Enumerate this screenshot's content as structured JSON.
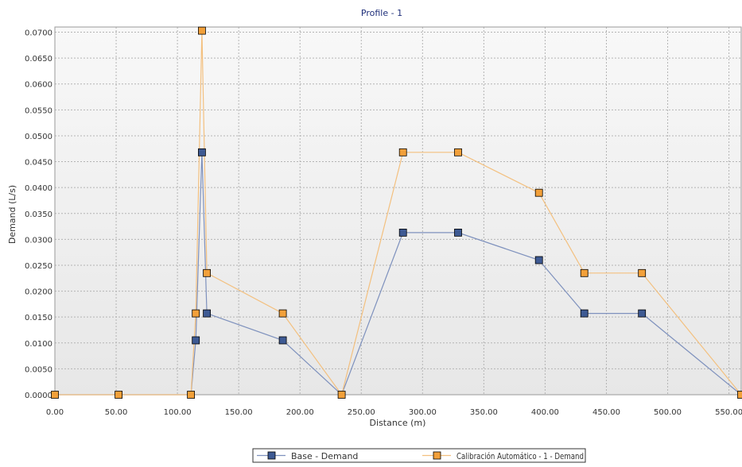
{
  "colors": {
    "title": "#1f2f7a",
    "plot_bg_top": "#f8f8f8",
    "plot_bg_bottom": "#e7e7e7",
    "grid": "#b4b4b4",
    "axis_text": "#333333",
    "base_line": "#7e91bd",
    "base_marker": "#3e5a93",
    "calib_line": "#f3c07f",
    "calib_marker": "#f2a03a"
  },
  "chart_data": {
    "type": "line",
    "title": "Profile - 1",
    "xlabel": "Distance (m)",
    "ylabel": "Demand (L/s)",
    "xlim": [
      0,
      560
    ],
    "ylim": [
      0,
      0.071
    ],
    "grid": true,
    "legend_position": "bottom",
    "x_ticks": [
      {
        "value": 0,
        "label": "0.00"
      },
      {
        "value": 50,
        "label": "50.00"
      },
      {
        "value": 100,
        "label": "100.00"
      },
      {
        "value": 150,
        "label": "150.00"
      },
      {
        "value": 200,
        "label": "200.00"
      },
      {
        "value": 250,
        "label": "250.00"
      },
      {
        "value": 300,
        "label": "300.00"
      },
      {
        "value": 350,
        "label": "350.00"
      },
      {
        "value": 400,
        "label": "400.00"
      },
      {
        "value": 450,
        "label": "450.00"
      },
      {
        "value": 500,
        "label": "500.00"
      },
      {
        "value": 550,
        "label": "550.00"
      }
    ],
    "y_ticks": [
      {
        "value": 0.0,
        "label": "0.0000"
      },
      {
        "value": 0.005,
        "label": "0.0050"
      },
      {
        "value": 0.01,
        "label": "0.0100"
      },
      {
        "value": 0.015,
        "label": "0.0150"
      },
      {
        "value": 0.02,
        "label": "0.0200"
      },
      {
        "value": 0.025,
        "label": "0.0250"
      },
      {
        "value": 0.03,
        "label": "0.0300"
      },
      {
        "value": 0.035,
        "label": "0.0350"
      },
      {
        "value": 0.04,
        "label": "0.0400"
      },
      {
        "value": 0.045,
        "label": "0.0450"
      },
      {
        "value": 0.05,
        "label": "0.0500"
      },
      {
        "value": 0.055,
        "label": "0.0550"
      },
      {
        "value": 0.06,
        "label": "0.0600"
      },
      {
        "value": 0.065,
        "label": "0.0650"
      },
      {
        "value": 0.07,
        "label": "0.0700"
      }
    ],
    "series": [
      {
        "name": "Base - Demand",
        "line_color": "#7e91bd",
        "marker_color": "#3e5a93",
        "x": [
          0,
          52,
          111,
          115,
          120,
          124,
          186,
          234,
          284,
          329,
          395,
          432,
          479,
          560
        ],
        "y": [
          0.0,
          0.0,
          0.0,
          0.0105,
          0.0468,
          0.0157,
          0.0105,
          0.0,
          0.0313,
          0.0313,
          0.026,
          0.0157,
          0.0157,
          0.0
        ],
        "markers": [
          false,
          false,
          false,
          true,
          true,
          true,
          true,
          false,
          true,
          true,
          true,
          true,
          true,
          false
        ]
      },
      {
        "name": "Calibración Automático - 1 - Demand",
        "line_color": "#f3c07f",
        "marker_color": "#f2a03a",
        "x": [
          0,
          52,
          111,
          115,
          120,
          124,
          186,
          234,
          284,
          329,
          395,
          432,
          479,
          560
        ],
        "y": [
          0.0,
          0.0,
          0.0,
          0.0157,
          0.0703,
          0.0235,
          0.0157,
          0.0,
          0.0468,
          0.0468,
          0.039,
          0.0235,
          0.0235,
          0.0
        ],
        "markers": [
          true,
          true,
          true,
          true,
          true,
          true,
          true,
          true,
          true,
          true,
          true,
          true,
          true,
          true
        ]
      }
    ]
  }
}
